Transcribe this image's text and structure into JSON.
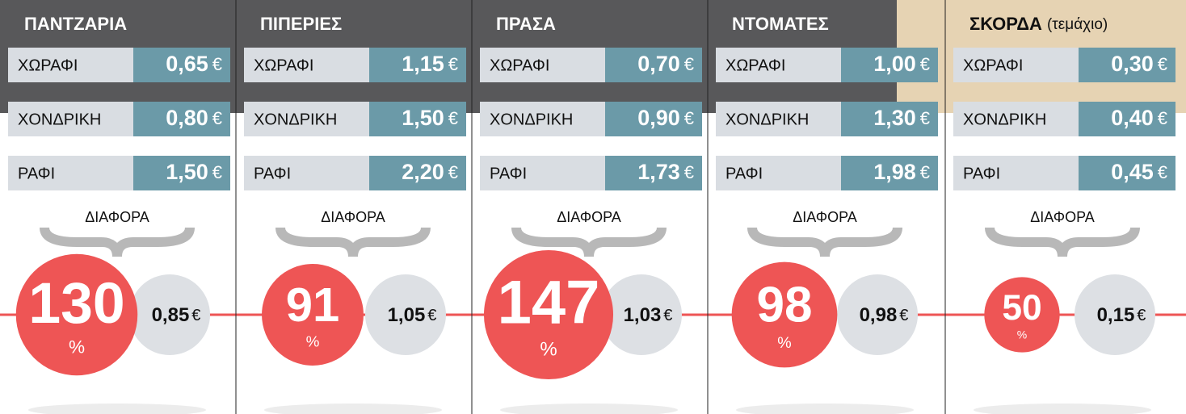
{
  "currency": "€",
  "difference_label": "ΔΙΑΦΟΡΑ",
  "percent_sign": "%",
  "columns": [
    {
      "title": "ΠΑΝΤΖΑΡΙΑ",
      "rows": [
        {
          "label": "ΧΩΡΑΦΙ",
          "price": "0,65"
        },
        {
          "label": "ΧΟΝΔΡΙΚΗ",
          "price": "0,80"
        },
        {
          "label": "ΡΑΦΙ",
          "price": "1,50"
        }
      ],
      "percent": 130,
      "difference": "0,85"
    },
    {
      "title": "ΠΙΠΕΡΙΕΣ",
      "rows": [
        {
          "label": "ΧΩΡΑΦΙ",
          "price": "1,15"
        },
        {
          "label": "ΧΟΝΔΡΙΚΗ",
          "price": "1,50"
        },
        {
          "label": "ΡΑΦΙ",
          "price": "2,20"
        }
      ],
      "percent": 91,
      "difference": "1,05"
    },
    {
      "title": "ΠΡΑΣΑ",
      "rows": [
        {
          "label": "ΧΩΡΑΦΙ",
          "price": "0,70"
        },
        {
          "label": "ΧΟΝΔΡΙΚΗ",
          "price": "0,90"
        },
        {
          "label": "ΡΑΦΙ",
          "price": "1,73"
        }
      ],
      "percent": 147,
      "difference": "1,03"
    },
    {
      "title": "ΝΤΟΜΑΤΕΣ",
      "rows": [
        {
          "label": "ΧΩΡΑΦΙ",
          "price": "1,00"
        },
        {
          "label": "ΧΟΝΔΡΙΚΗ",
          "price": "1,30"
        },
        {
          "label": "ΡΑΦΙ",
          "price": "1,98"
        }
      ],
      "percent": 98,
      "difference": "0,98"
    },
    {
      "title": "ΣΚΟΡΔΑ",
      "subtitle": "(τεμάχιο)",
      "rows": [
        {
          "label": "ΧΩΡΑΦΙ",
          "price": "0,30"
        },
        {
          "label": "ΧΟΝΔΡΙΚΗ",
          "price": "0,40"
        },
        {
          "label": "ΡΑΦΙ",
          "price": "0,45"
        }
      ],
      "percent": 50,
      "difference": "0,15"
    }
  ]
}
